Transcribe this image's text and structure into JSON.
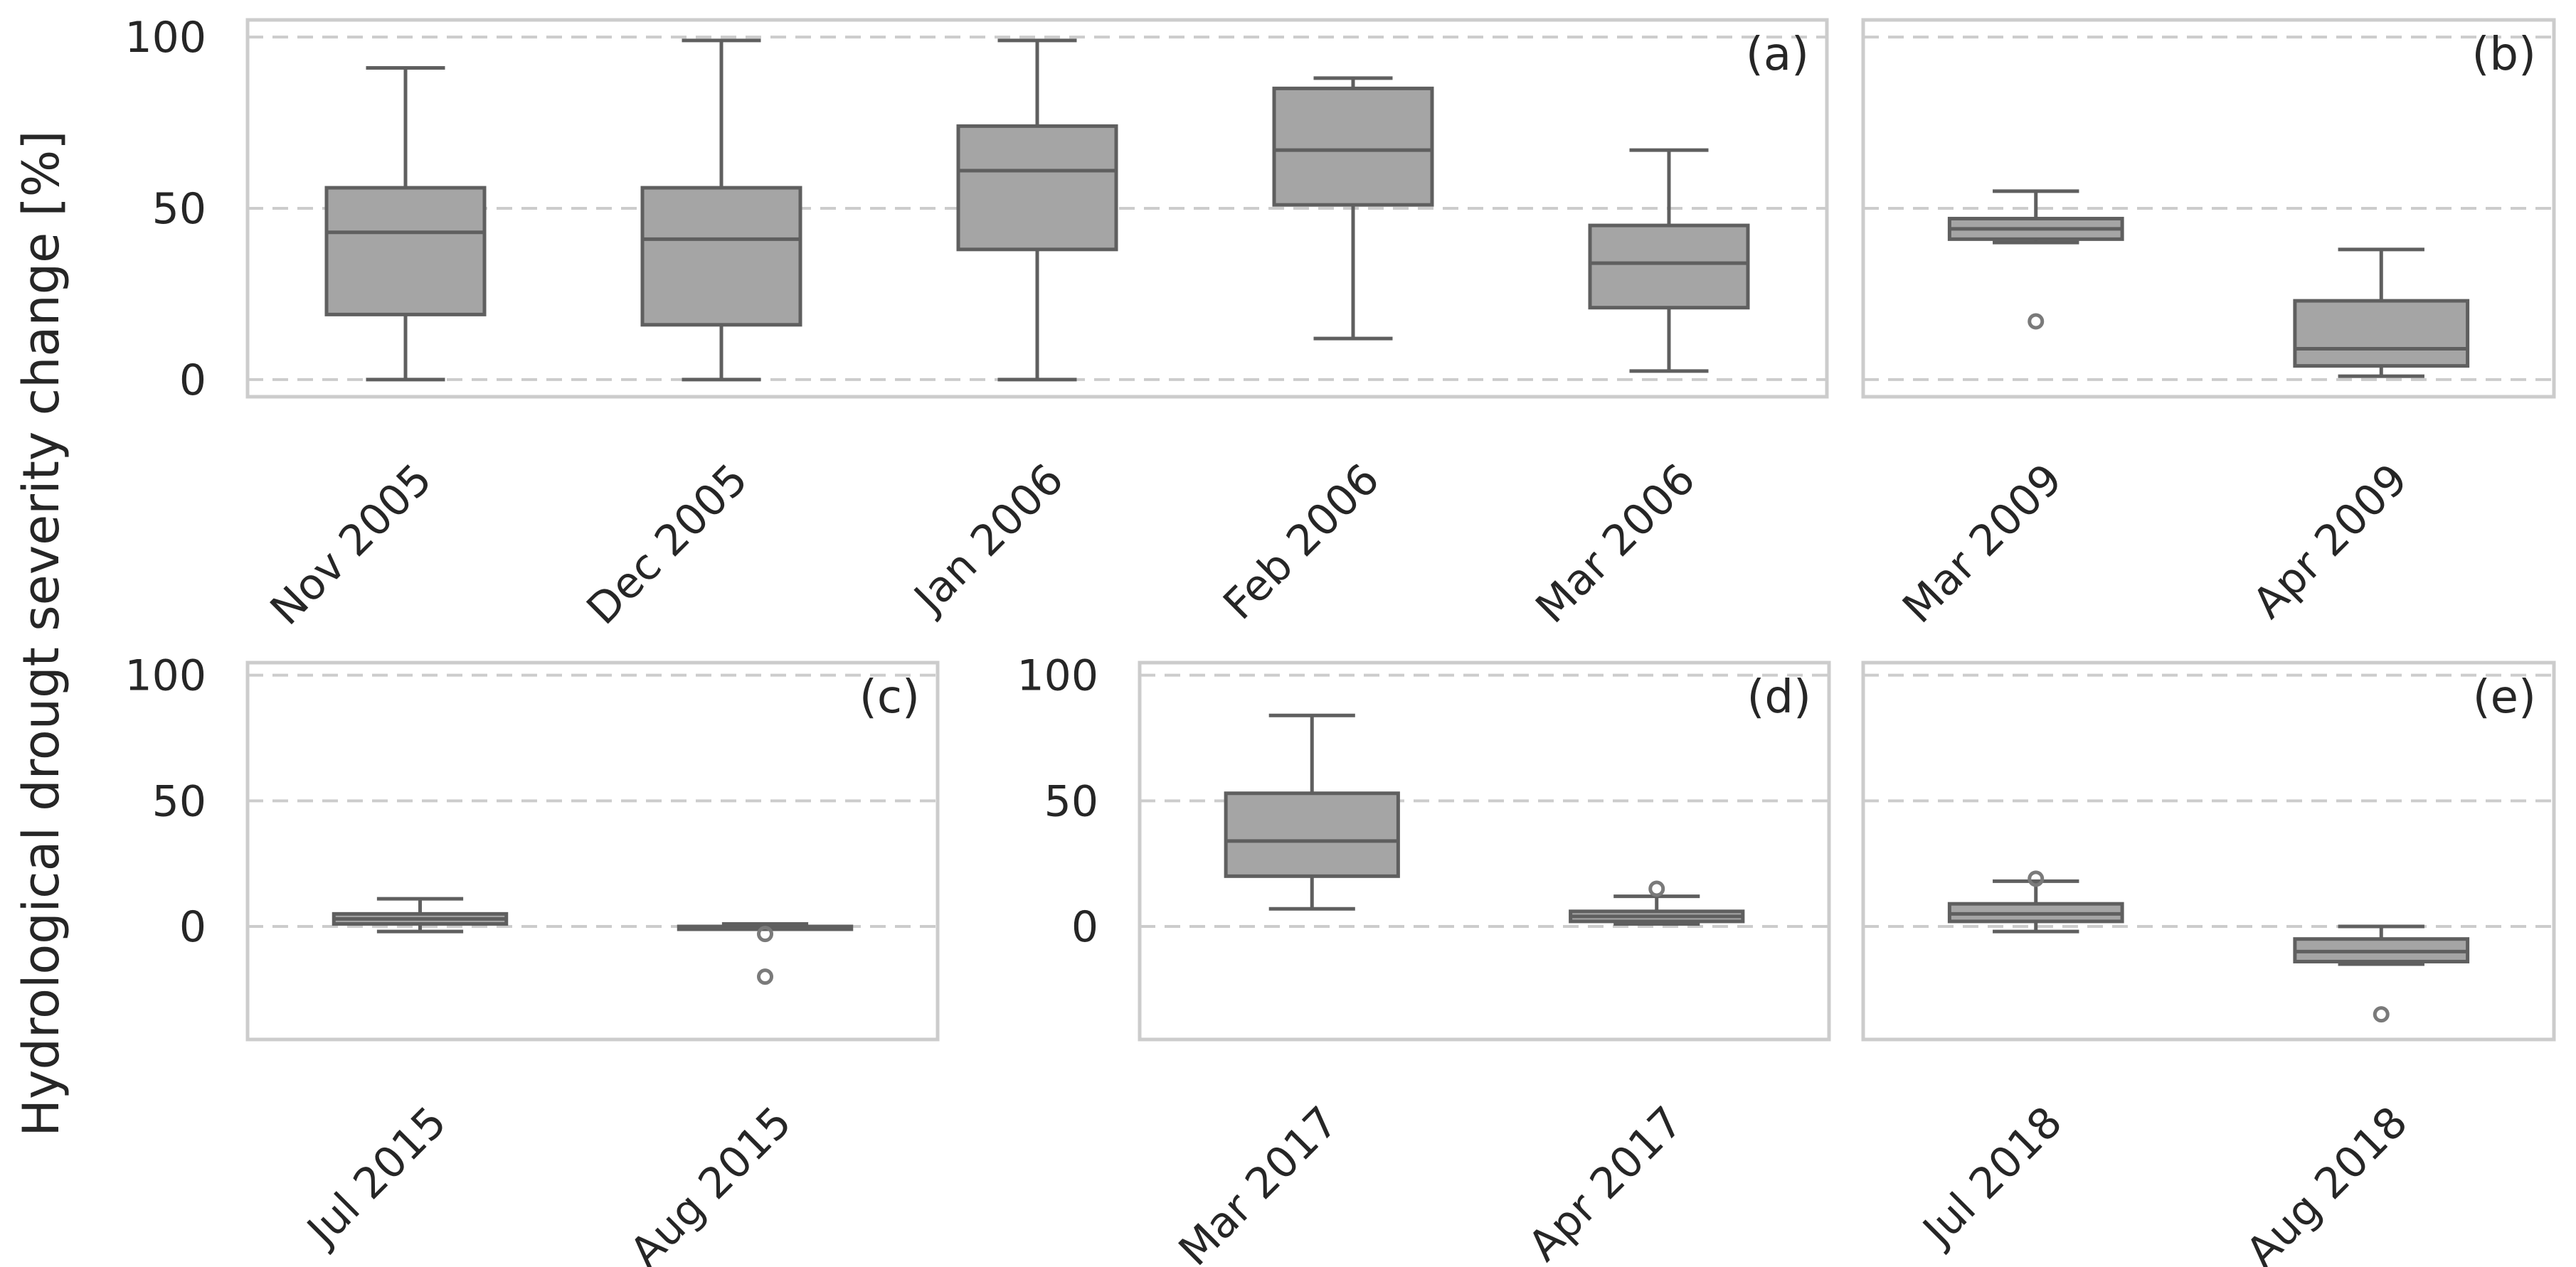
{
  "chart_data": [
    {
      "panel": "(a)",
      "type": "box",
      "ylim": [
        -5,
        105
      ],
      "yticks": [
        0,
        50,
        100
      ],
      "categories": [
        "Nov 2005",
        "Dec 2005",
        "Jan 2006",
        "Feb 2006",
        "Mar 2006"
      ],
      "boxes": [
        {
          "min": 0,
          "q1": 19,
          "median": 43,
          "q3": 56,
          "max": 91,
          "fliers": []
        },
        {
          "min": 0,
          "q1": 16,
          "median": 41,
          "q3": 56,
          "max": 99,
          "fliers": []
        },
        {
          "min": 0,
          "q1": 38,
          "median": 61,
          "q3": 74,
          "max": 99,
          "fliers": []
        },
        {
          "min": 12,
          "q1": 51,
          "median": 67,
          "q3": 85,
          "max": 88,
          "fliers": []
        },
        {
          "min": 2.5,
          "q1": 21,
          "median": 34,
          "q3": 45,
          "max": 67,
          "fliers": []
        }
      ]
    },
    {
      "panel": "(b)",
      "type": "box",
      "ylim": [
        -5,
        105
      ],
      "yticks": [
        0,
        50,
        100
      ],
      "categories": [
        "Mar 2009",
        "Apr 2009"
      ],
      "boxes": [
        {
          "min": 40,
          "q1": 41,
          "median": 44,
          "q3": 47,
          "max": 55,
          "fliers": [
            17
          ]
        },
        {
          "min": 1,
          "q1": 4,
          "median": 9,
          "q3": 23,
          "max": 38,
          "fliers": []
        }
      ]
    },
    {
      "panel": "(c)",
      "type": "box",
      "ylim": [
        -45,
        105
      ],
      "yticks": [
        0,
        50,
        100
      ],
      "categories": [
        "Jul 2015",
        "Aug 2015"
      ],
      "boxes": [
        {
          "min": -2,
          "q1": 1,
          "median": 3,
          "q3": 5,
          "max": 11,
          "fliers": []
        },
        {
          "min": -1,
          "q1": -1,
          "median": -0.5,
          "q3": 0,
          "max": 1,
          "fliers": [
            -3,
            -20
          ]
        }
      ]
    },
    {
      "panel": "(d)",
      "type": "box",
      "ylim": [
        -45,
        105
      ],
      "yticks": [
        0,
        50,
        100
      ],
      "categories": [
        "Mar 2017",
        "Apr 2017"
      ],
      "boxes": [
        {
          "min": 7,
          "q1": 20,
          "median": 34,
          "q3": 53,
          "max": 84,
          "fliers": []
        },
        {
          "min": 1,
          "q1": 2,
          "median": 4,
          "q3": 6,
          "max": 12,
          "fliers": [
            15
          ]
        }
      ]
    },
    {
      "panel": "(e)",
      "type": "box",
      "ylim": [
        -45,
        105
      ],
      "yticks": [
        0,
        50,
        100
      ],
      "categories": [
        "Jul 2018",
        "Aug 2018"
      ],
      "boxes": [
        {
          "min": -2,
          "q1": 2,
          "median": 5,
          "q3": 9,
          "max": 18,
          "fliers": [
            19
          ]
        },
        {
          "min": -15,
          "q1": -14,
          "median": -10,
          "q3": -5,
          "max": 0,
          "fliers": [
            -35
          ]
        }
      ]
    }
  ],
  "ylabel": "Hydrological drougt severity change [%]"
}
